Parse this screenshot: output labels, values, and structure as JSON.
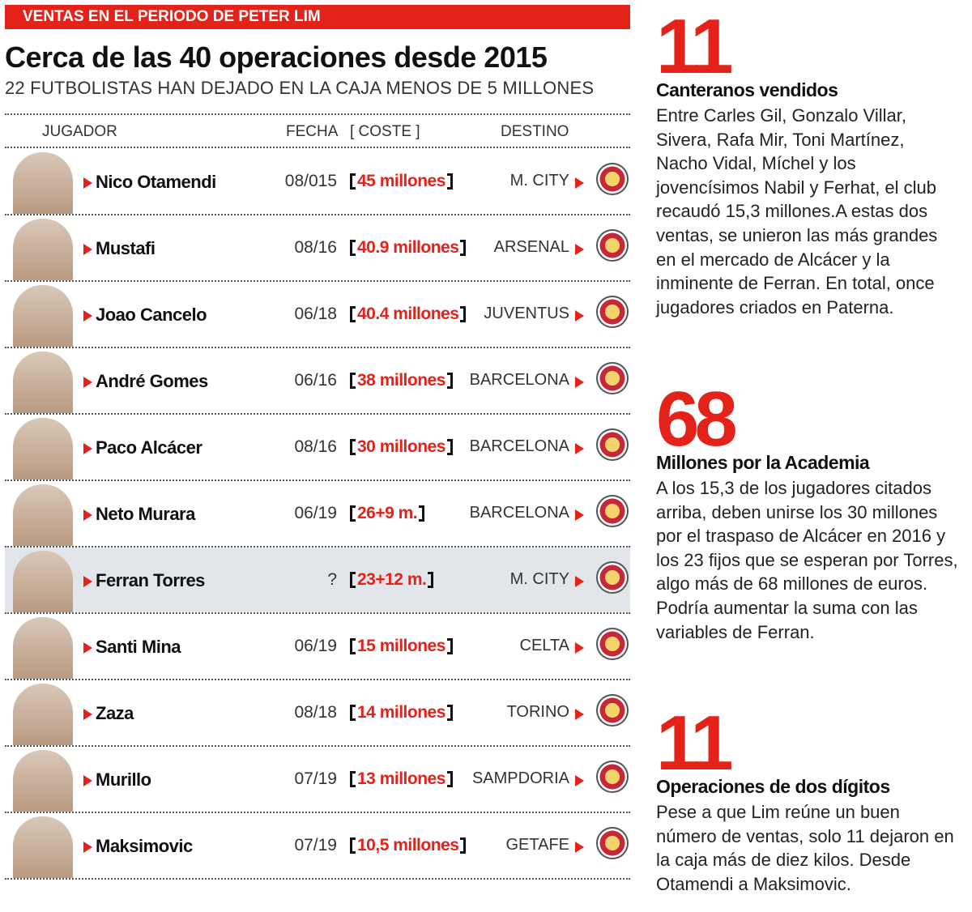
{
  "header": {
    "banner": "VENTAS EN EL PERIODO DE PETER LIM",
    "title": "Cerca de las 40 operaciones desde 2015",
    "subtitle": "22 FUTBOLISTAS HAN DEJADO EN LA CAJA MENOS DE 5 MILLONES"
  },
  "table": {
    "columns": [
      "JUGADOR",
      "FECHA",
      "[ COSTE ]",
      "DESTINO"
    ],
    "rows": [
      {
        "name": "Nico Otamendi",
        "date": "08/015",
        "cost": "45 millones",
        "club": "M. CITY"
      },
      {
        "name": "Mustafi",
        "date": "08/16",
        "cost": "40.9 millones",
        "club": "ARSENAL"
      },
      {
        "name": "Joao Cancelo",
        "date": "06/18",
        "cost": "40.4 millones",
        "club": "JUVENTUS"
      },
      {
        "name": "André Gomes",
        "date": "06/16",
        "cost": "38 millones",
        "club": "BARCELONA"
      },
      {
        "name": "Paco Alcácer",
        "date": "08/16",
        "cost": "30 millones",
        "club": "BARCELONA"
      },
      {
        "name": "Neto Murara",
        "date": "06/19",
        "cost": "26+9 m.",
        "club": "BARCELONA"
      },
      {
        "name": "Ferran Torres",
        "date": "?",
        "cost": "23+12 m.",
        "club": "M. CITY"
      },
      {
        "name": "Santi Mina",
        "date": "06/19",
        "cost": "15 millones",
        "club": "CELTA"
      },
      {
        "name": "Zaza",
        "date": "08/18",
        "cost": "14 millones",
        "club": "TORINO"
      },
      {
        "name": "Murillo",
        "date": "07/19",
        "cost": "13 millones",
        "club": "SAMPDORIA"
      },
      {
        "name": "Maksimovic",
        "date": "07/19",
        "cost": "10,5 millones",
        "club": "GETAFE"
      }
    ]
  },
  "sidebar": [
    {
      "number": "11",
      "heading": "Canteranos vendidos",
      "text": "Entre Carles Gil, Gonzalo Villar, Sivera, Rafa Mir, Toni Martínez, Nacho Vidal, Míchel y los jovencísimos Nabil y Ferhat, el club recaudó 15,3 millones.A estas dos ventas, se unieron las más grandes en el mercado de Alcácer y la inminente de Ferran. En total, once jugadores criados en Paterna."
    },
    {
      "number": "68",
      "heading": "Millones por la Academia",
      "text": "A los 15,3 de los jugadores citados arriba, deben unirse los 30 millones por el traspaso de Alcácer en 2016 y los 23 fijos que se esperan por Torres, algo más de 68 millones de euros. Podría aumentar la suma con las variables de Ferran."
    },
    {
      "number": "11",
      "heading": "Operaciones de dos dígitos",
      "text": "Pese a que Lim reúne un buen número de ventas, solo 11 dejaron en la caja más de diez kilos. Desde Otamendi a Maksimovic."
    }
  ]
}
